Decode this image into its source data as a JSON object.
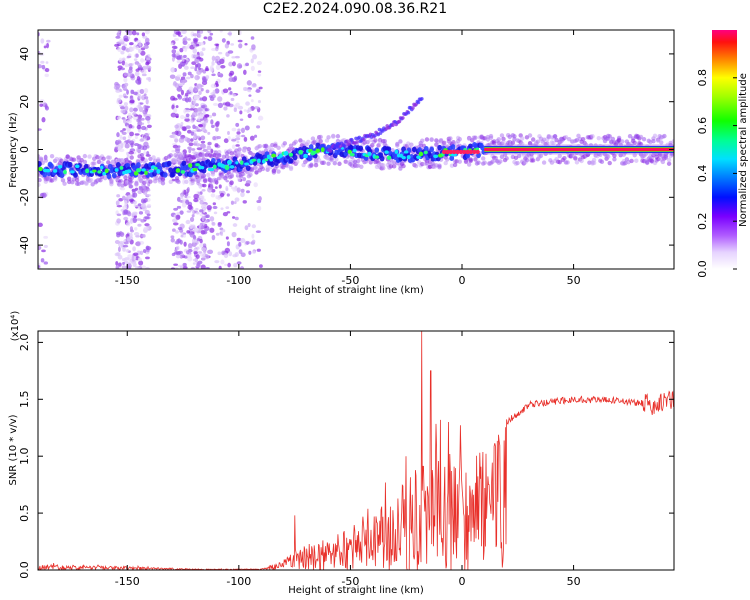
{
  "title": "C2E2.2024.090.08.36.R21",
  "chart_data": [
    {
      "type": "heatmap",
      "xlabel": "Height of straight line (km)",
      "ylabel": "Frequency (Hz)",
      "xlim": [
        -190,
        95
      ],
      "ylim": [
        -50,
        50
      ],
      "x_ticks": [
        -150,
        -100,
        -50,
        0,
        50
      ],
      "y_ticks": [
        -40,
        -20,
        0,
        20,
        40
      ],
      "colorbar": {
        "label": "Normalized spectral amplitude",
        "range": [
          0,
          1
        ],
        "ticks": [
          "0.0",
          "0.2",
          "0.4",
          "0.6",
          "0.8"
        ],
        "tick_values": [
          0,
          0.2,
          0.4,
          0.6,
          0.8
        ]
      },
      "ridge": [
        {
          "x": -190,
          "y": -8
        },
        {
          "x": -150,
          "y": -9
        },
        {
          "x": -120,
          "y": -8
        },
        {
          "x": -100,
          "y": -6
        },
        {
          "x": -80,
          "y": -3
        },
        {
          "x": -60,
          "y": 0
        },
        {
          "x": -40,
          "y": -2
        },
        {
          "x": -20,
          "y": -2
        },
        {
          "x": 0,
          "y": -1
        },
        {
          "x": 10,
          "y": 0
        },
        {
          "x": 95,
          "y": 0
        }
      ],
      "branch": [
        {
          "x": -60,
          "y": 0
        },
        {
          "x": -40,
          "y": 6
        },
        {
          "x": -28,
          "y": 12
        },
        {
          "x": -18,
          "y": 22
        }
      ]
    },
    {
      "type": "line",
      "xlabel": "Height of straight line (km)",
      "ylabel": "SNR (10 * v/v)",
      "scale_label": "(x10⁴)",
      "xlim": [
        -190,
        95
      ],
      "ylim": [
        0,
        2.1
      ],
      "x_ticks": [
        -150,
        -100,
        -50,
        0,
        50
      ],
      "y_ticks": [
        0,
        0.5,
        1.0,
        1.5,
        2.0
      ],
      "y_tick_labels": [
        "0.0",
        "0.5",
        "1.0",
        "1.5",
        "2.0"
      ],
      "color": "#e8302a",
      "envelope": [
        {
          "x": -190,
          "y": 0.05
        },
        {
          "x": -150,
          "y": 0.03
        },
        {
          "x": -120,
          "y": 0.01
        },
        {
          "x": -90,
          "y": 0.01
        },
        {
          "x": -80,
          "y": 0.08
        },
        {
          "x": -75,
          "y": 0.2
        },
        {
          "x": -60,
          "y": 0.25
        },
        {
          "x": -50,
          "y": 0.3
        },
        {
          "x": -40,
          "y": 0.5
        },
        {
          "x": -30,
          "y": 0.7
        },
        {
          "x": -20,
          "y": 0.9
        },
        {
          "x": -10,
          "y": 1.0
        },
        {
          "x": 0,
          "y": 1.05
        },
        {
          "x": 10,
          "y": 1.1
        },
        {
          "x": 20,
          "y": 1.3
        },
        {
          "x": 30,
          "y": 1.45
        },
        {
          "x": 50,
          "y": 1.5
        },
        {
          "x": 70,
          "y": 1.49
        },
        {
          "x": 85,
          "y": 1.45
        },
        {
          "x": 95,
          "y": 1.5
        }
      ],
      "peaks": [
        {
          "x": -18,
          "y": 2.1
        },
        {
          "x": -14,
          "y": 1.75
        },
        {
          "x": -25,
          "y": 1.0
        },
        {
          "x": -6,
          "y": 1.3
        },
        {
          "x": 12,
          "y": 0.75
        },
        {
          "x": -75,
          "y": 0.48
        }
      ]
    }
  ]
}
